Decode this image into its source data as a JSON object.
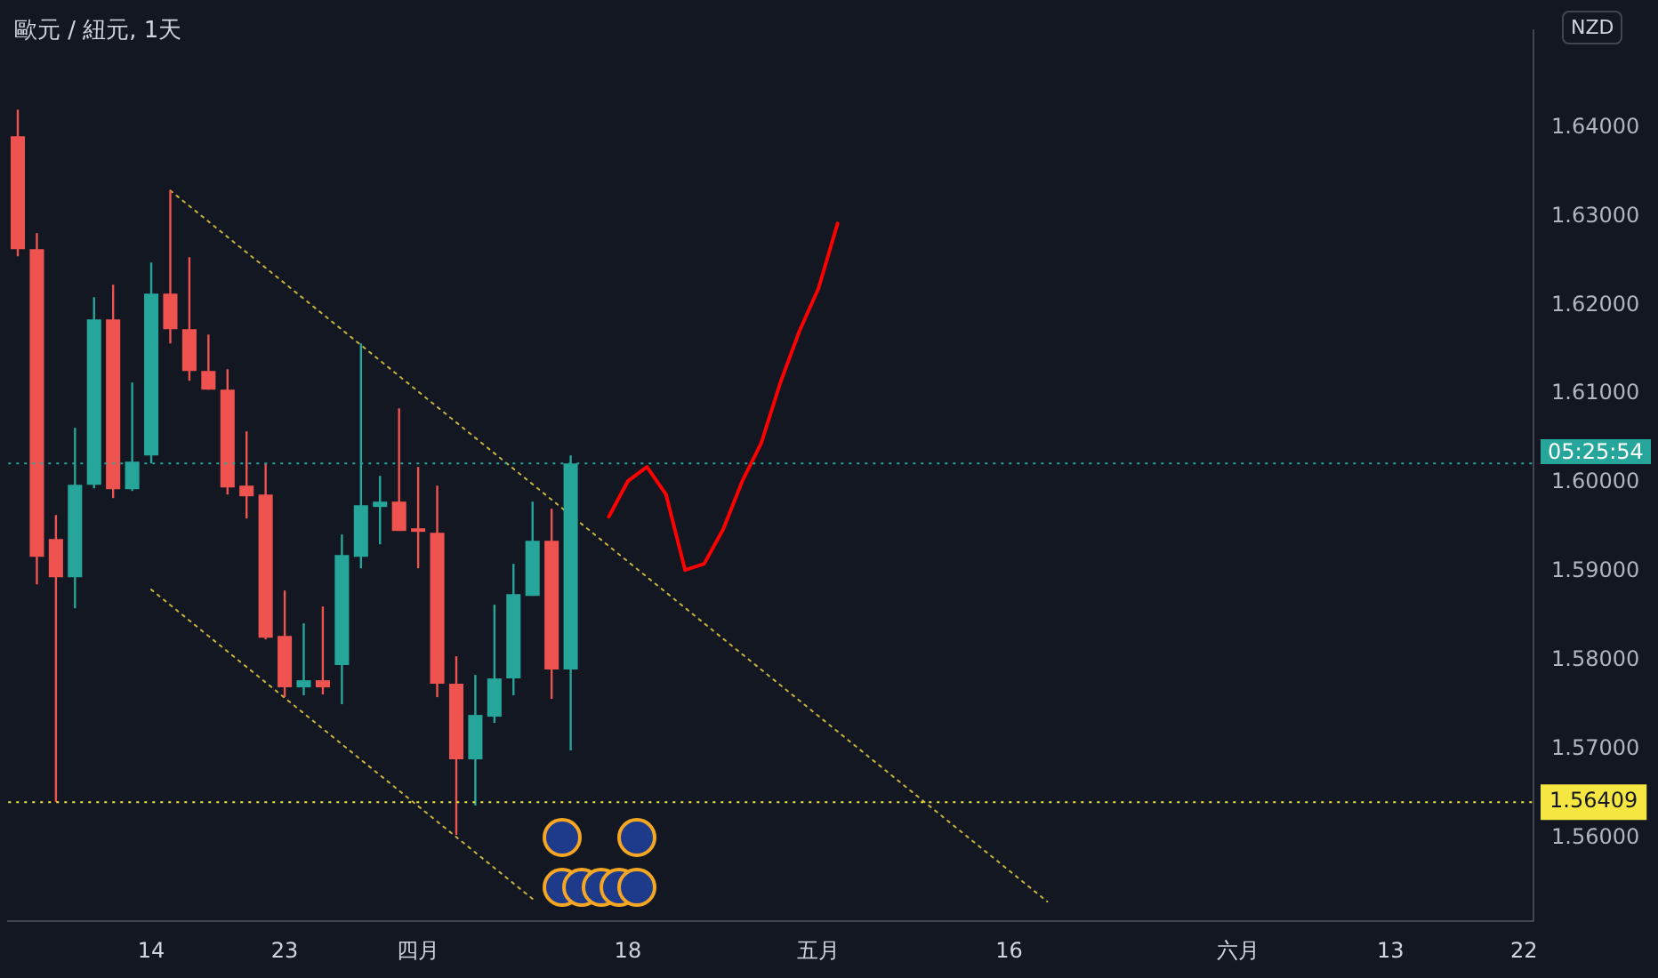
{
  "chart_data": {
    "type": "candlestick",
    "title": "歐元 / 紐元, 1天",
    "categories": [
      null,
      null,
      null,
      null,
      null,
      null,
      null,
      "14",
      null,
      null,
      null,
      null,
      null,
      null,
      "23",
      null,
      null,
      null,
      null,
      null,
      null,
      "四月",
      null,
      null,
      null,
      null,
      null,
      null,
      null,
      null,
      null,
      null,
      "18",
      null,
      null,
      null,
      null,
      null,
      null,
      null,
      null,
      null,
      "五月",
      null,
      null,
      null,
      null,
      null,
      null,
      null,
      null,
      null,
      "16",
      null,
      null,
      null,
      null,
      null,
      null,
      null,
      null,
      null,
      null,
      null,
      "六月",
      null,
      null,
      null,
      null,
      null,
      null,
      null,
      "13",
      null,
      null,
      null,
      null,
      null,
      null,
      "22"
    ],
    "ohlc": [
      [
        1.639,
        1.642,
        1.6255,
        1.6263
      ],
      [
        1.6263,
        1.6281,
        1.5886,
        1.5917
      ],
      [
        1.5937,
        1.5964,
        1.5641,
        1.5894
      ],
      [
        1.5894,
        1.6062,
        1.5859,
        1.5998
      ],
      [
        1.5998,
        1.6209,
        1.5994,
        1.6184
      ],
      [
        1.6184,
        1.6223,
        1.5983,
        1.5993
      ],
      [
        1.5993,
        1.6113,
        1.5991,
        1.6024
      ],
      [
        1.6031,
        1.6248,
        1.6022,
        1.6213
      ],
      [
        1.6213,
        1.6329,
        1.6157,
        1.6173
      ],
      [
        1.6173,
        1.6254,
        1.6115,
        1.6126
      ],
      [
        1.6126,
        1.6167,
        1.6105,
        1.6105
      ],
      [
        1.6105,
        1.6128,
        1.5987,
        1.5995
      ],
      [
        1.5997,
        1.6058,
        1.596,
        1.5985
      ],
      [
        1.5987,
        1.6022,
        1.5824,
        1.5826
      ],
      [
        1.5828,
        1.5879,
        1.5759,
        1.577
      ],
      [
        1.577,
        1.5842,
        1.5761,
        1.5778
      ],
      [
        1.5778,
        1.5861,
        1.5762,
        1.577
      ],
      [
        1.5795,
        1.5942,
        1.5751,
        1.5919
      ],
      [
        1.5917,
        1.6157,
        1.5904,
        1.5975
      ],
      [
        1.5973,
        1.6008,
        1.5931,
        1.5979
      ],
      [
        1.5979,
        1.6084,
        1.5946,
        1.5946
      ],
      [
        1.5947,
        1.6018,
        1.5904,
        1.5945
      ],
      [
        1.5944,
        1.5997,
        1.5759,
        1.5774
      ],
      [
        1.5774,
        1.5805,
        1.5604,
        1.5689
      ],
      [
        1.5689,
        1.5784,
        1.5637,
        1.5739
      ],
      [
        1.5737,
        1.5863,
        1.573,
        1.578
      ],
      [
        1.578,
        1.5909,
        1.5761,
        1.5875
      ],
      [
        1.5873,
        1.5979,
        1.5873,
        1.5935
      ],
      [
        1.5935,
        1.5971,
        1.5757,
        1.579
      ],
      [
        1.579,
        1.6031,
        1.5699,
        1.6022
      ],
      null,
      null,
      null,
      null,
      null,
      null,
      null,
      null,
      null,
      null,
      null,
      null,
      null,
      null,
      null,
      null,
      null,
      null,
      null,
      null,
      null,
      null,
      null,
      null,
      null,
      null,
      null,
      null,
      null,
      null,
      null,
      null,
      null,
      null,
      null,
      null,
      null,
      null,
      null,
      null,
      null,
      null,
      null,
      null,
      null,
      null,
      null,
      null,
      null,
      null
    ],
    "colors": [
      "#ef5350",
      "#ef5350",
      "#ef5350",
      "#26a69a",
      "#26a69a",
      "#ef5350",
      "#26a69a",
      "#26a69a",
      "#ef5350",
      "#ef5350",
      "#ef5350",
      "#ef5350",
      "#ef5350",
      "#ef5350",
      "#ef5350",
      "#26a69a",
      "#ef5350",
      "#26a69a",
      "#26a69a",
      "#26a69a",
      "#ef5350",
      "#ef5350",
      "#ef5350",
      "#ef5350",
      "#26a69a",
      "#26a69a",
      "#26a69a",
      "#26a69a",
      "#ef5350",
      "#26a69a",
      null,
      null,
      null,
      null,
      null,
      null,
      null,
      null,
      null,
      null,
      null,
      null,
      null,
      null,
      null,
      null,
      null,
      null,
      null,
      null,
      null,
      null,
      null,
      null,
      null,
      null,
      null,
      null,
      null,
      null,
      null,
      null,
      null,
      null,
      null,
      null,
      null,
      null,
      null,
      null,
      null,
      null,
      null,
      null,
      null,
      null,
      null,
      null,
      null,
      null
    ],
    "series": [
      {
        "type": "line",
        "color": "#c8b43c",
        "line_style": "dotted",
        "values": [
          null,
          null,
          null,
          null,
          null,
          null,
          null,
          null,
          1.6329,
          null,
          null,
          null,
          null,
          null,
          null,
          null,
          null,
          null,
          null,
          null,
          null,
          null,
          null,
          null,
          null,
          null,
          null,
          null,
          null,
          null,
          null,
          null,
          null,
          null,
          null,
          null,
          null,
          null,
          null,
          null,
          null,
          null,
          null,
          null,
          null,
          null,
          null,
          null,
          null,
          null,
          null,
          null,
          null,
          null,
          1.5529,
          null,
          null,
          null,
          null,
          null,
          null,
          null,
          null,
          null,
          null,
          null,
          null,
          null,
          null,
          null,
          null,
          null,
          null,
          null,
          null,
          null,
          null,
          null,
          null,
          null
        ]
      },
      {
        "type": "line",
        "color": "#c8b43c",
        "line_style": "dotted",
        "values": [
          null,
          null,
          null,
          null,
          null,
          null,
          null,
          1.588,
          null,
          null,
          null,
          null,
          null,
          null,
          null,
          null,
          null,
          null,
          null,
          null,
          null,
          null,
          null,
          null,
          null,
          null,
          null,
          1.5532,
          null,
          null,
          null,
          null,
          null,
          null,
          null,
          null,
          null,
          null,
          null,
          null,
          null,
          null,
          null,
          null,
          null,
          null,
          null,
          null,
          null,
          null,
          null,
          null,
          null,
          null,
          null,
          null,
          null,
          null,
          null,
          null,
          null,
          null,
          null,
          null,
          null,
          null,
          null,
          null,
          null,
          null,
          null,
          null,
          null,
          null,
          null,
          null,
          null,
          null,
          null,
          null
        ]
      },
      {
        "type": "line",
        "color": "#ff0000",
        "line_style": "solid",
        "values": [
          null,
          null,
          null,
          null,
          null,
          null,
          null,
          null,
          null,
          null,
          null,
          null,
          null,
          null,
          null,
          null,
          null,
          null,
          null,
          null,
          null,
          null,
          null,
          null,
          null,
          null,
          null,
          null,
          null,
          null,
          null,
          1.5962,
          1.6002,
          1.6018,
          1.5987,
          1.5902,
          1.5909,
          1.5948,
          1.6002,
          1.6045,
          1.6113,
          1.6171,
          1.6219,
          1.6292,
          null,
          null,
          null,
          null,
          null,
          null,
          null,
          null,
          null,
          null,
          null,
          null,
          null,
          null,
          null,
          null,
          null,
          null,
          null,
          null,
          null,
          null,
          null,
          null,
          null,
          null,
          null,
          null,
          null,
          null,
          null,
          null,
          null,
          null,
          null,
          null
        ]
      }
    ],
    "ylim": [
      1.5507,
      1.6509
    ],
    "yticks": [
      {
        "value": 1.56,
        "label": "1.56000"
      },
      {
        "value": 1.57,
        "label": "1.57000"
      },
      {
        "value": 1.58,
        "label": "1.58000"
      },
      {
        "value": 1.59,
        "label": "1.59000"
      },
      {
        "value": 1.6,
        "label": "1.60000"
      },
      {
        "value": 1.61,
        "label": "1.61000"
      },
      {
        "value": 1.62,
        "label": "1.62000"
      },
      {
        "value": 1.63,
        "label": "1.63000"
      },
      {
        "value": 1.64,
        "label": "1.64000"
      }
    ],
    "ref_lines": [
      {
        "axis": "y",
        "value": 1.6022,
        "color": "#26a69a",
        "line_style": "dotted"
      },
      {
        "axis": "y",
        "value": 1.56409,
        "label": "1.56409",
        "color": "#f5e642",
        "line_style": "dotted"
      }
    ],
    "annotations": [
      "NZD",
      "05:25:54"
    ],
    "marker": "none",
    "grid": false,
    "legend": false
  }
}
